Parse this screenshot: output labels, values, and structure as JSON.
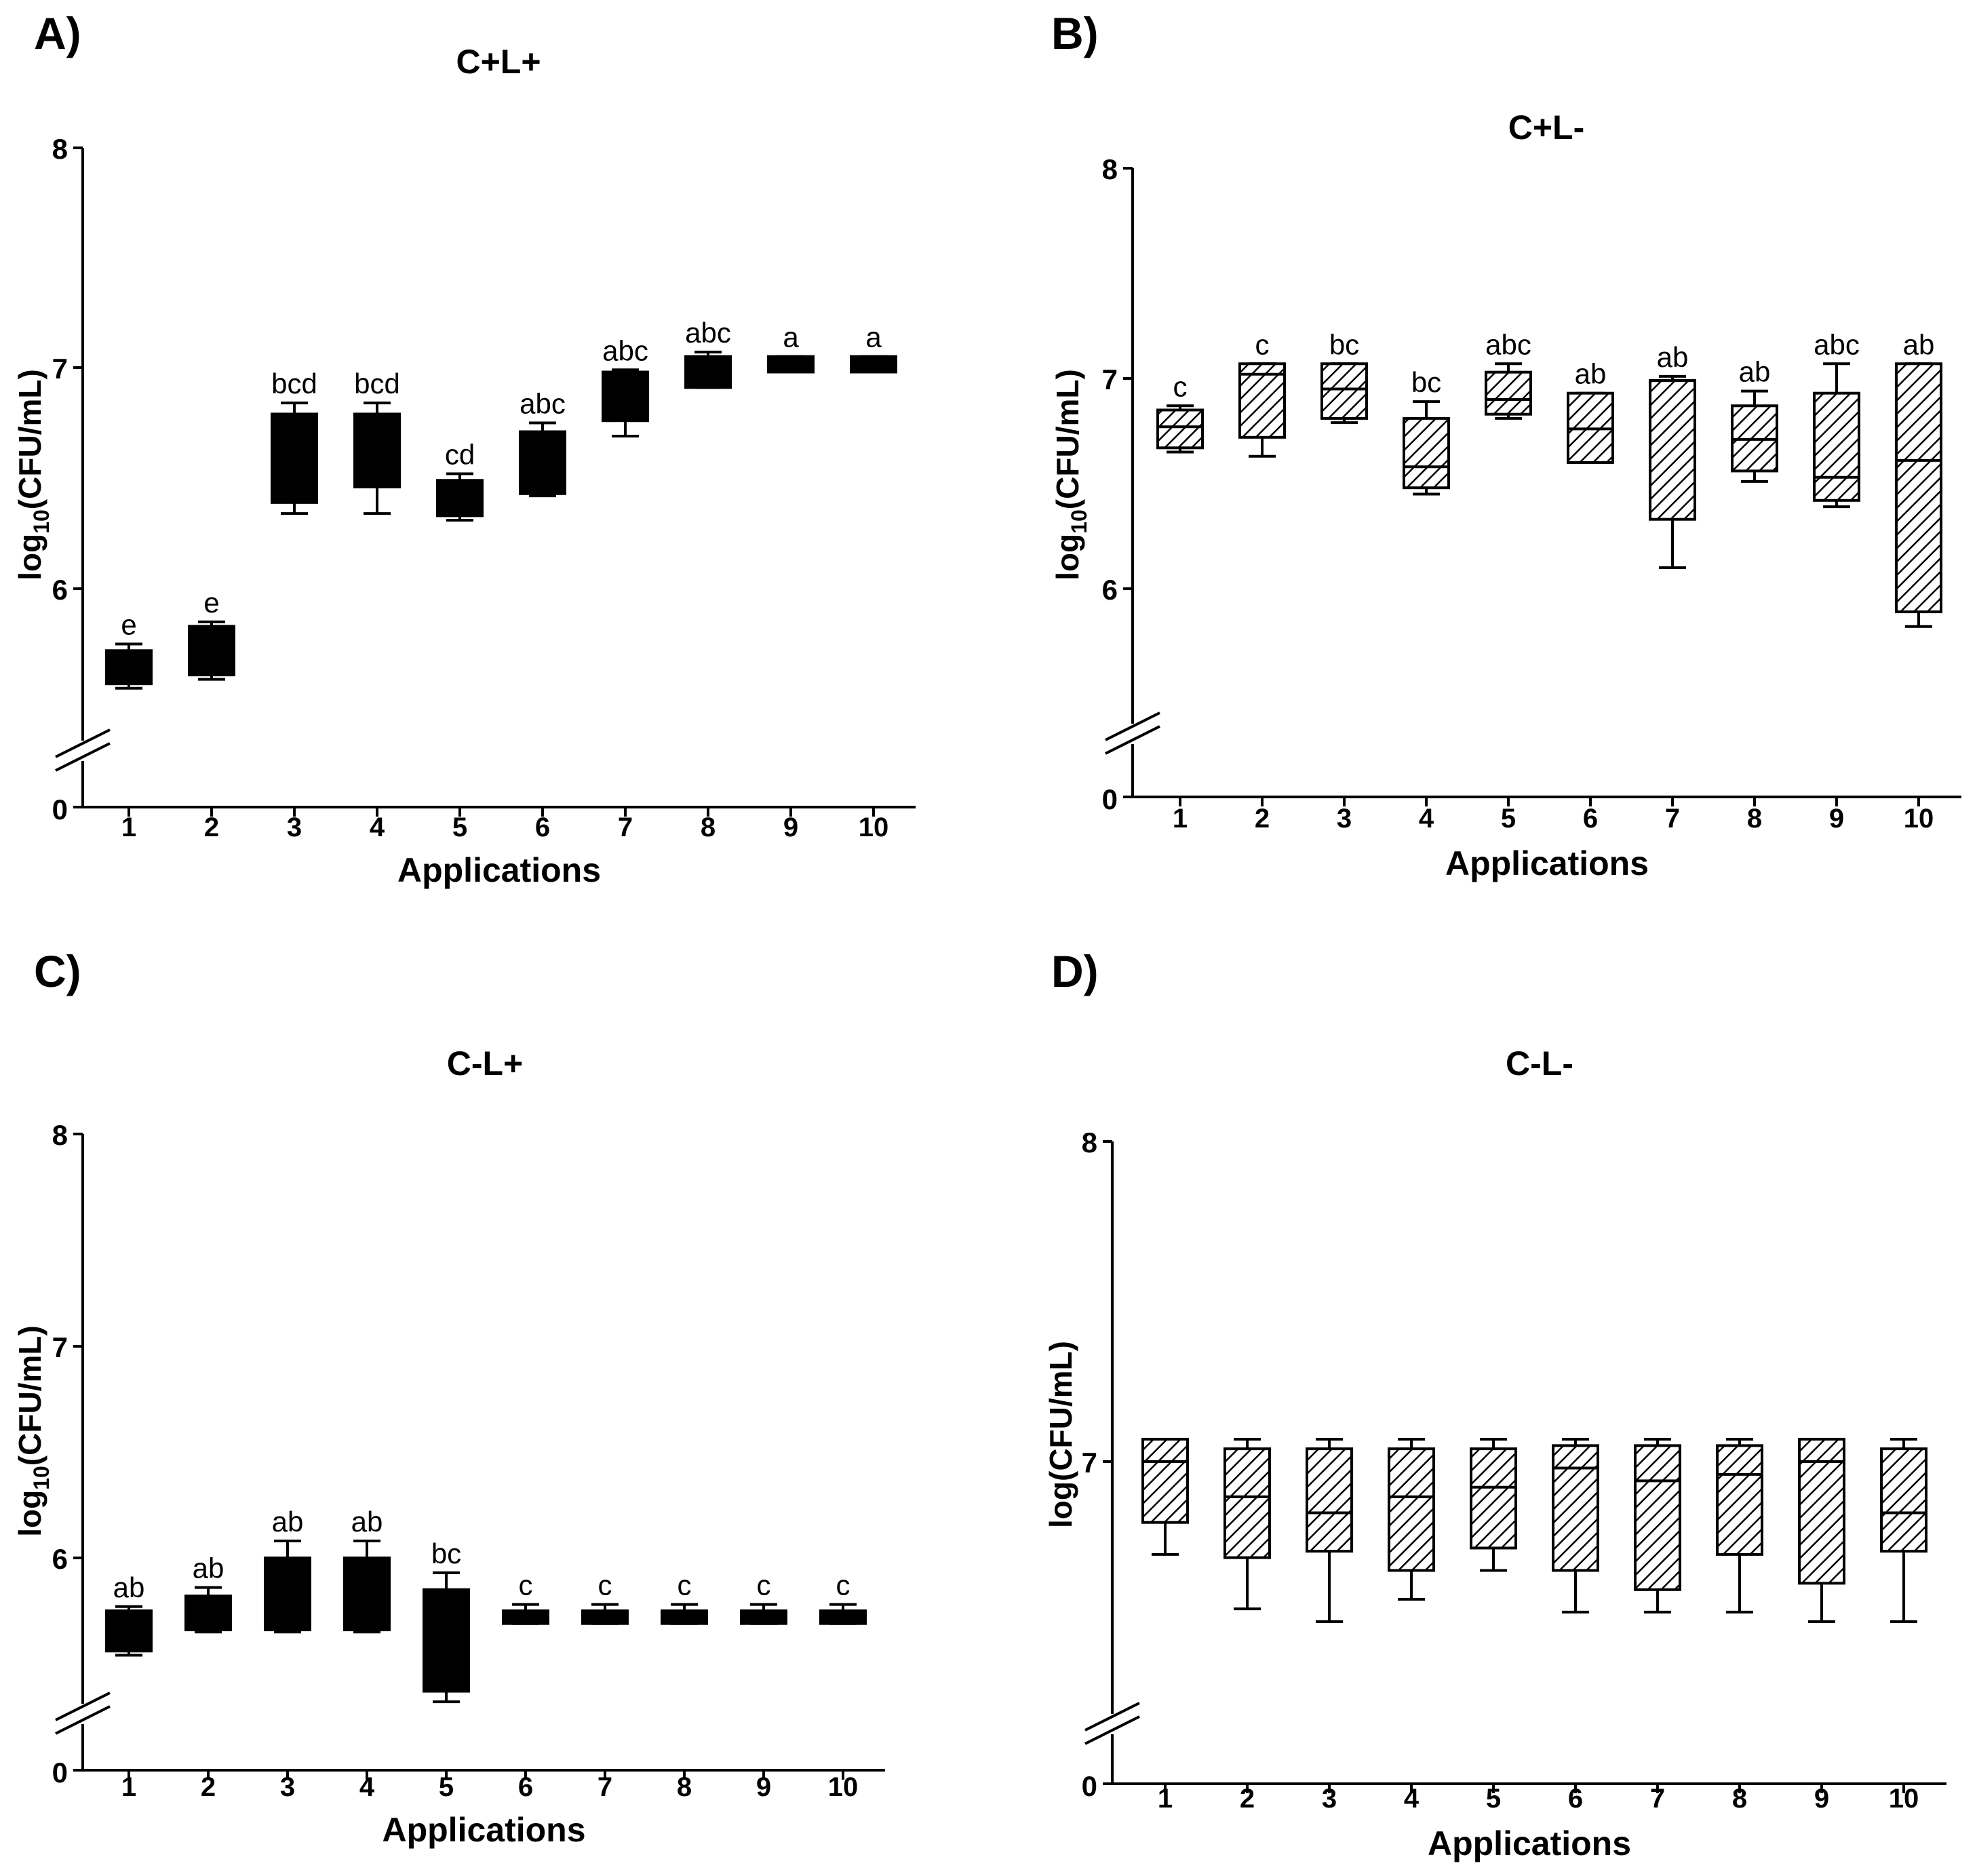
{
  "chart_data": [
    {
      "panel_label": "A)",
      "title": "C+L+",
      "type": "boxplot",
      "fill": "solid",
      "xlabel": "Applications",
      "ylabel_prefix": "log",
      "ylabel_sub": "10",
      "ylabel_suffix": "(CFU/mL)",
      "y_range": [
        5.3,
        8
      ],
      "y_ticks": [
        "6",
        "7",
        "8"
      ],
      "y_break_label": "0",
      "categories": [
        "1",
        "2",
        "3",
        "4",
        "5",
        "6",
        "7",
        "8",
        "9",
        "10"
      ],
      "boxes": [
        {
          "min": 5.55,
          "q1": 5.57,
          "median": 5.65,
          "q3": 5.72,
          "max": 5.75
        },
        {
          "min": 5.59,
          "q1": 5.61,
          "median": 5.72,
          "q3": 5.83,
          "max": 5.85
        },
        {
          "min": 6.34,
          "q1": 6.39,
          "median": 6.6,
          "q3": 6.79,
          "max": 6.84
        },
        {
          "min": 6.34,
          "q1": 6.46,
          "median": 6.6,
          "q3": 6.79,
          "max": 6.84
        },
        {
          "min": 6.31,
          "q1": 6.33,
          "median": 6.42,
          "q3": 6.49,
          "max": 6.52
        },
        {
          "min": 6.42,
          "q1": 6.43,
          "median": 6.58,
          "q3": 6.71,
          "max": 6.75
        },
        {
          "min": 6.69,
          "q1": 6.76,
          "median": 6.88,
          "q3": 6.98,
          "max": 6.99
        },
        {
          "min": 6.91,
          "q1": 6.91,
          "median": 7.0,
          "q3": 7.05,
          "max": 7.07
        },
        {
          "min": 6.98,
          "q1": 6.98,
          "median": 7.02,
          "q3": 7.05,
          "max": 7.05
        },
        {
          "min": 6.98,
          "q1": 6.98,
          "median": 7.02,
          "q3": 7.05,
          "max": 7.05
        }
      ],
      "letters": [
        "e",
        "e",
        "bcd",
        "bcd",
        "cd",
        "abc",
        "abc",
        "abc",
        "a",
        "a"
      ]
    },
    {
      "panel_label": "B)",
      "title": "C+L-",
      "type": "boxplot",
      "fill": "hatched",
      "xlabel": "Applications",
      "ylabel_prefix": "log",
      "ylabel_sub": "10",
      "ylabel_suffix": "(CFU/mL)",
      "y_range": [
        5.3,
        8
      ],
      "y_ticks": [
        "6",
        "7",
        "8"
      ],
      "y_break_label": "0",
      "categories": [
        "1",
        "2",
        "3",
        "4",
        "5",
        "6",
        "7",
        "8",
        "9",
        "10"
      ],
      "boxes": [
        {
          "min": 6.65,
          "q1": 6.67,
          "median": 6.77,
          "q3": 6.85,
          "max": 6.87
        },
        {
          "min": 6.63,
          "q1": 6.72,
          "median": 7.02,
          "q3": 7.07,
          "max": 7.07
        },
        {
          "min": 6.79,
          "q1": 6.81,
          "median": 6.95,
          "q3": 7.07,
          "max": 7.07
        },
        {
          "min": 6.45,
          "q1": 6.48,
          "median": 6.58,
          "q3": 6.81,
          "max": 6.89
        },
        {
          "min": 6.81,
          "q1": 6.83,
          "median": 6.9,
          "q3": 7.03,
          "max": 7.07
        },
        {
          "min": 6.6,
          "q1": 6.6,
          "median": 6.76,
          "q3": 6.93,
          "max": 6.93
        },
        {
          "min": 6.1,
          "q1": 6.33,
          "median": 6.99,
          "q3": 6.99,
          "max": 7.01
        },
        {
          "min": 6.51,
          "q1": 6.56,
          "median": 6.71,
          "q3": 6.87,
          "max": 6.94
        },
        {
          "min": 6.39,
          "q1": 6.42,
          "median": 6.53,
          "q3": 6.93,
          "max": 7.07
        },
        {
          "min": 5.82,
          "q1": 5.89,
          "median": 6.61,
          "q3": 7.07,
          "max": 7.07
        }
      ],
      "letters": [
        "c",
        "c",
        "bc",
        "bc",
        "abc",
        "ab",
        "ab",
        "ab",
        "abc",
        "ab"
      ]
    },
    {
      "panel_label": "C)",
      "title": "C-L+",
      "type": "boxplot",
      "fill": "solid",
      "xlabel": "Applications",
      "ylabel_prefix": "log",
      "ylabel_sub": "10",
      "ylabel_suffix": "(CFU/mL)",
      "y_range": [
        5.0,
        8
      ],
      "y_ticks": [
        "6",
        "7",
        "8"
      ],
      "y_break_label": "0",
      "categories": [
        "1",
        "2",
        "3",
        "4",
        "5",
        "6",
        "7",
        "8",
        "9",
        "10"
      ],
      "boxes": [
        {
          "min": 5.54,
          "q1": 5.56,
          "median": 5.66,
          "q3": 5.75,
          "max": 5.77
        },
        {
          "min": 5.65,
          "q1": 5.66,
          "median": 5.73,
          "q3": 5.82,
          "max": 5.86
        },
        {
          "min": 5.65,
          "q1": 5.66,
          "median": 5.83,
          "q3": 6.0,
          "max": 6.08
        },
        {
          "min": 5.65,
          "q1": 5.66,
          "median": 5.83,
          "q3": 6.0,
          "max": 6.08
        },
        {
          "min": 5.32,
          "q1": 5.37,
          "median": 5.6,
          "q3": 5.85,
          "max": 5.93
        },
        {
          "min": 5.69,
          "q1": 5.69,
          "median": 5.72,
          "q3": 5.75,
          "max": 5.78
        },
        {
          "min": 5.69,
          "q1": 5.69,
          "median": 5.72,
          "q3": 5.75,
          "max": 5.78
        },
        {
          "min": 5.69,
          "q1": 5.69,
          "median": 5.72,
          "q3": 5.75,
          "max": 5.78
        },
        {
          "min": 5.69,
          "q1": 5.69,
          "median": 5.72,
          "q3": 5.75,
          "max": 5.78
        },
        {
          "min": 5.69,
          "q1": 5.69,
          "median": 5.72,
          "q3": 5.75,
          "max": 5.78
        }
      ],
      "letters": [
        "ab",
        "ab",
        "ab",
        "ab",
        "bc",
        "c",
        "c",
        "c",
        "c",
        "c"
      ]
    },
    {
      "panel_label": "D)",
      "title": "C-L-",
      "type": "boxplot",
      "fill": "hatched",
      "xlabel": "Applications",
      "ylabel_prefix": "",
      "ylabel_sub": "",
      "ylabel_suffix": "log(CFU/mL)",
      "y_range": [
        6.0,
        8
      ],
      "y_ticks": [
        "7",
        "8"
      ],
      "y_break_label": "0",
      "categories": [
        "1",
        "2",
        "3",
        "4",
        "5",
        "6",
        "7",
        "8",
        "9",
        "10"
      ],
      "boxes": [
        {
          "min": 6.71,
          "q1": 6.81,
          "median": 7.0,
          "q3": 7.07,
          "max": 7.07
        },
        {
          "min": 6.54,
          "q1": 6.7,
          "median": 6.89,
          "q3": 7.04,
          "max": 7.07
        },
        {
          "min": 6.5,
          "q1": 6.72,
          "median": 6.84,
          "q3": 7.04,
          "max": 7.07
        },
        {
          "min": 6.57,
          "q1": 6.66,
          "median": 6.89,
          "q3": 7.04,
          "max": 7.07
        },
        {
          "min": 6.66,
          "q1": 6.73,
          "median": 6.92,
          "q3": 7.04,
          "max": 7.07
        },
        {
          "min": 6.53,
          "q1": 6.66,
          "median": 6.98,
          "q3": 7.05,
          "max": 7.07
        },
        {
          "min": 6.53,
          "q1": 6.6,
          "median": 6.94,
          "q3": 7.05,
          "max": 7.07
        },
        {
          "min": 6.53,
          "q1": 6.71,
          "median": 6.96,
          "q3": 7.05,
          "max": 7.07
        },
        {
          "min": 6.5,
          "q1": 6.62,
          "median": 7.0,
          "q3": 7.07,
          "max": 7.07
        },
        {
          "min": 6.5,
          "q1": 6.72,
          "median": 6.84,
          "q3": 7.04,
          "max": 7.07
        }
      ],
      "letters": [
        "",
        "",
        "",
        "",
        "",
        "",
        "",
        "",
        "",
        ""
      ]
    }
  ]
}
